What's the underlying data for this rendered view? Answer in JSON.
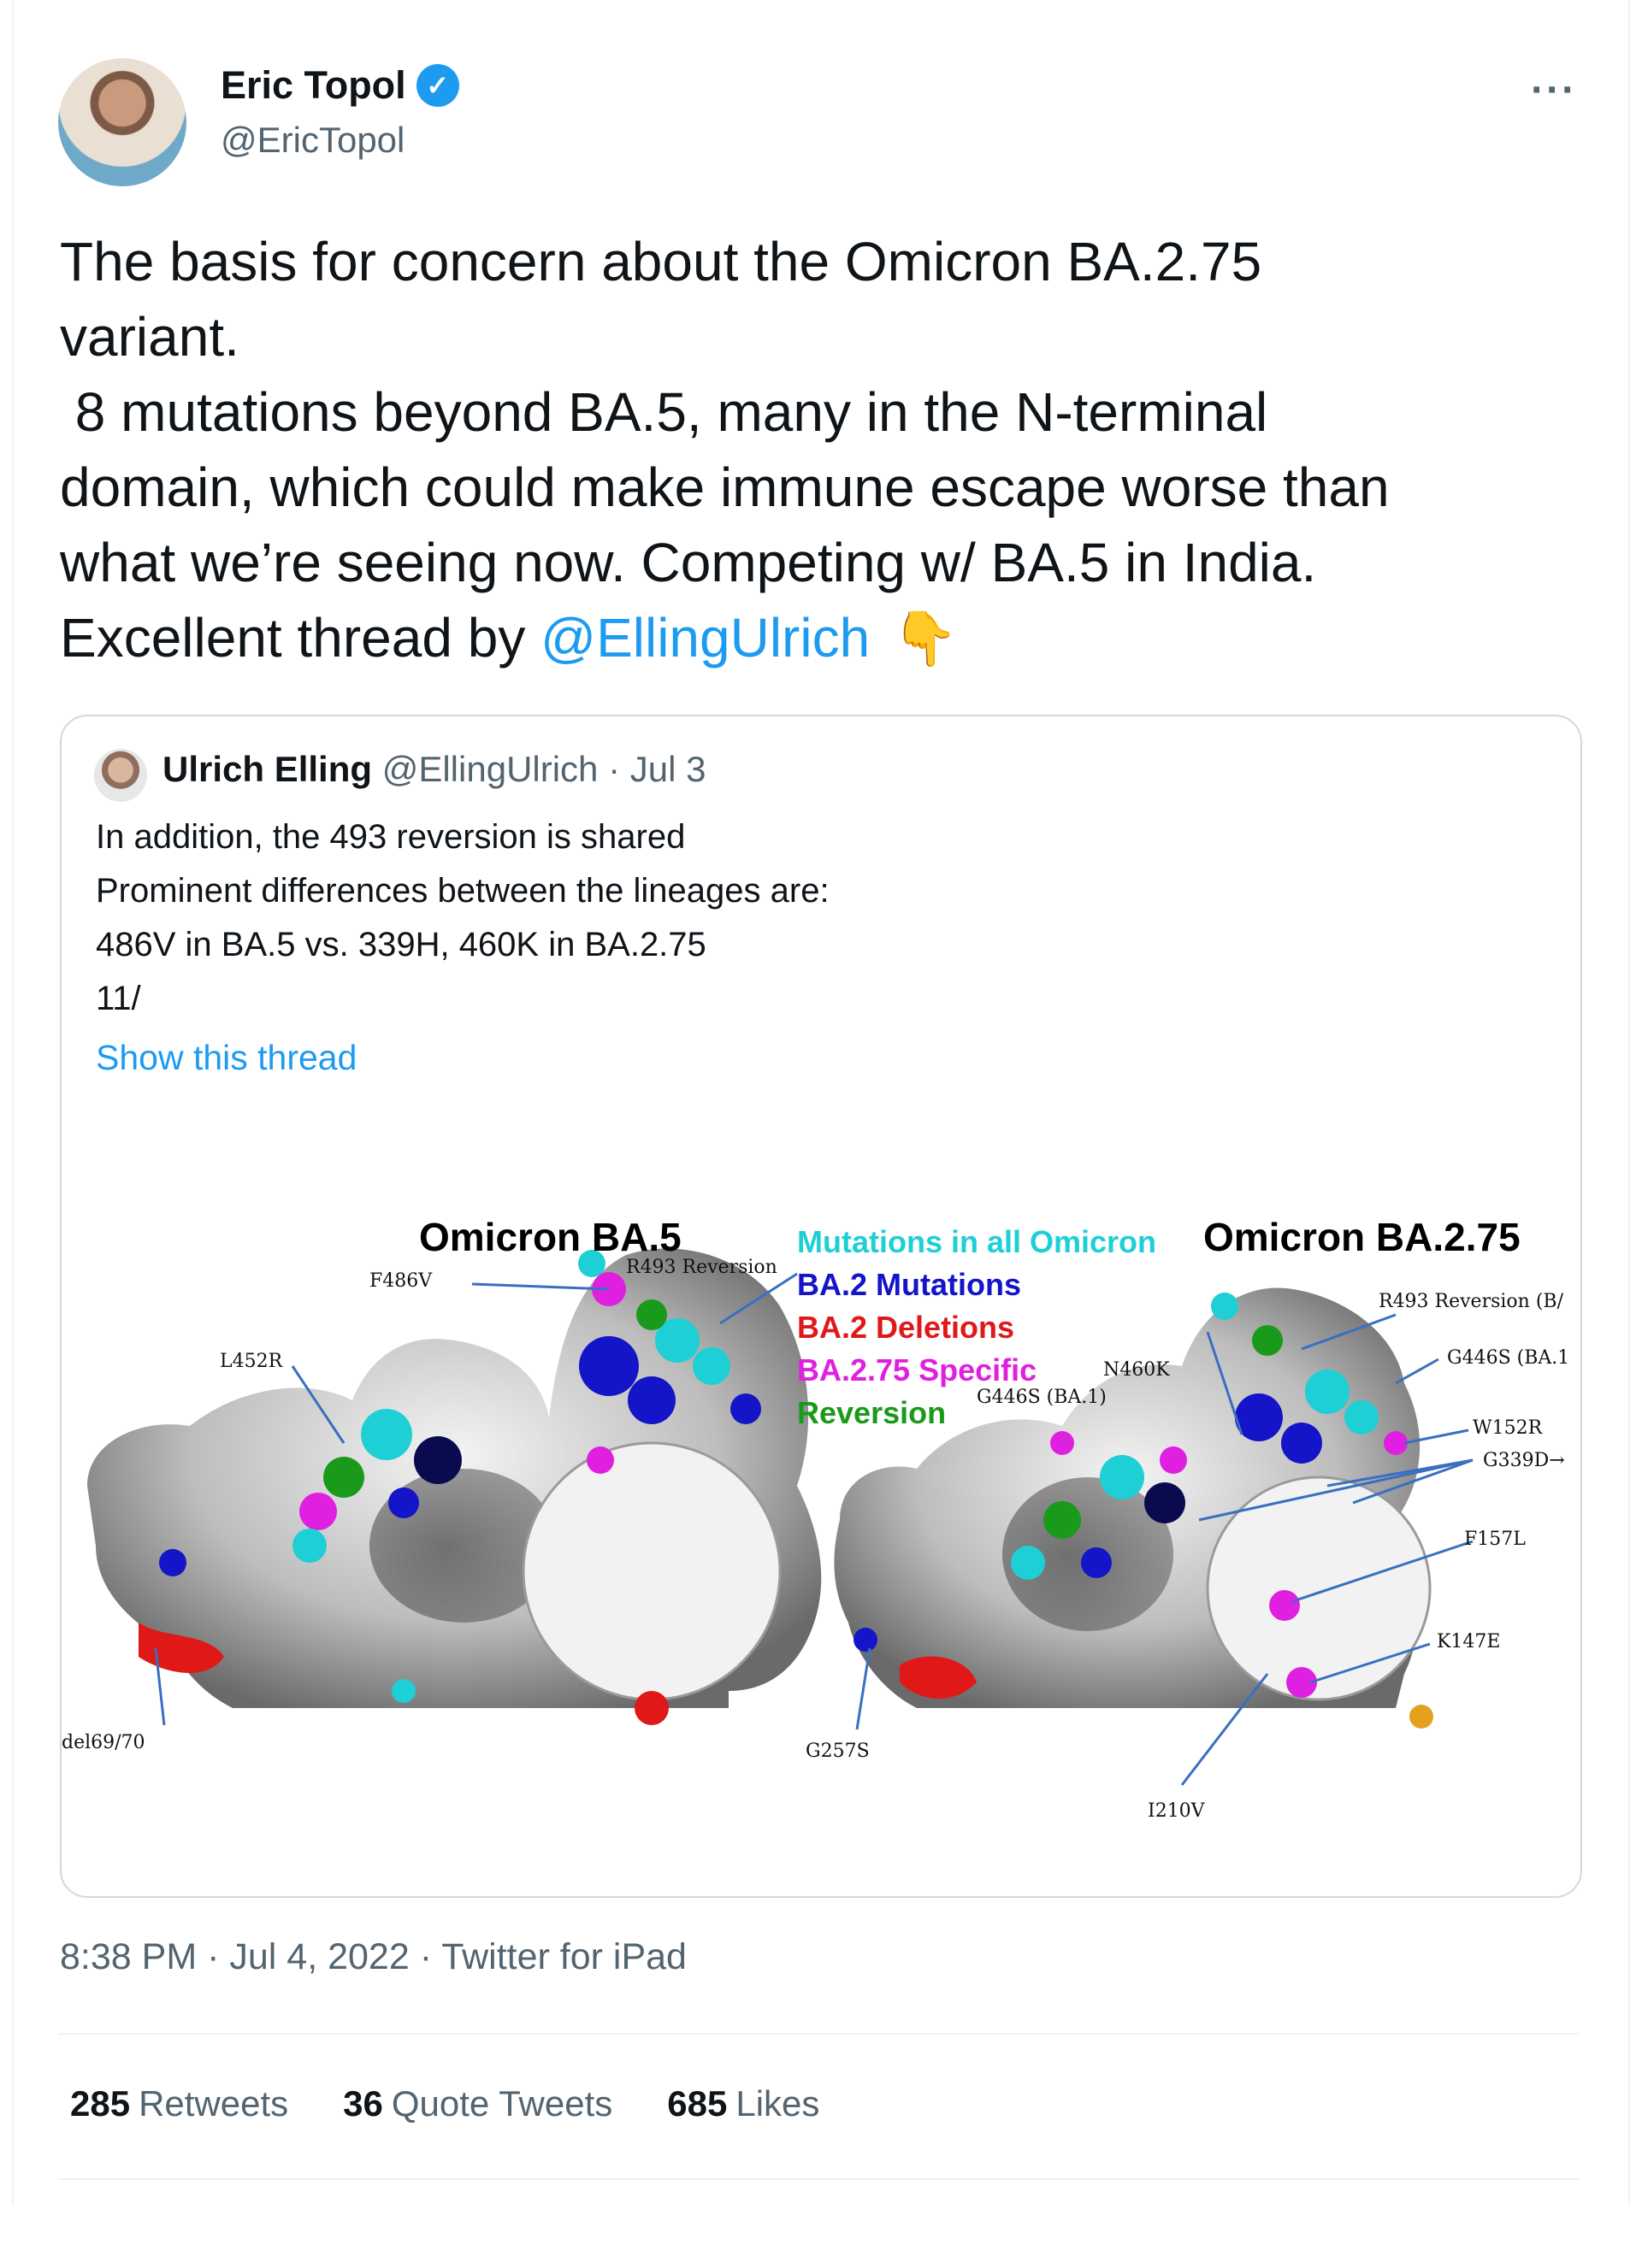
{
  "author": {
    "name": "Eric Topol",
    "handle": "@EricTopol",
    "verified_mark": "✓",
    "more_glyph": "···"
  },
  "tweet": {
    "lines": [
      "The basis for concern about the Omicron BA.2.75",
      "variant.",
      " 8 mutations beyond BA.5, many in the N-terminal",
      "domain, which could make immune escape worse than",
      "what we’re seeing now. Competing w/ BA.5 in India."
    ],
    "last_line_prefix": "Excellent thread by ",
    "mention": "@EllingUlrich",
    "emoji": "👇"
  },
  "quoted": {
    "name": "Ulrich Elling",
    "handle": "@EllingUlrich",
    "date_sep": " · ",
    "date": "Jul 3",
    "lines": [
      "In addition, the 493 reversion is shared",
      "Prominent differences between the lineages are:",
      "486V in BA.5 vs. 339H, 460K in BA.2.75",
      "11/"
    ],
    "show_thread": "Show this thread",
    "figure": {
      "left_title": "Omicron BA.5",
      "right_title": "Omicron BA.2.75",
      "legend": [
        {
          "label": "Mutations in all Omicron",
          "color": "#1ecfd6"
        },
        {
          "label": "BA.2 Mutations",
          "color": "#1414c8"
        },
        {
          "label": "BA.2 Deletions",
          "color": "#e01818"
        },
        {
          "label": "BA.2.75 Specific",
          "color": "#e020e0"
        },
        {
          "label": "Reversion",
          "color": "#1a9a1a"
        }
      ],
      "left_labels": {
        "f486v": "F486V",
        "r493": "R493 Reversion",
        "l452r": "L452R",
        "del6970": "del69/70"
      },
      "right_labels": {
        "r493": "R493 Reversion (B/",
        "g446s_a": "G446S (BA.1",
        "n460k": "N460K",
        "g446s_b": "G446S (BA.1)",
        "w152r": "W152R",
        "g339d": "G339D→",
        "f157l": "F157L",
        "k147e": "K147E",
        "g257s": "G257S",
        "i210v": "I210V"
      }
    }
  },
  "meta": {
    "time": "8:38 PM",
    "date": "Jul 4, 2022",
    "source": "Twitter for iPad",
    "separator": " · "
  },
  "stats": {
    "retweets": {
      "count": "285",
      "label": "Retweets"
    },
    "quotes": {
      "count": "36",
      "label": "Quote Tweets"
    },
    "likes": {
      "count": "685",
      "label": "Likes"
    }
  }
}
